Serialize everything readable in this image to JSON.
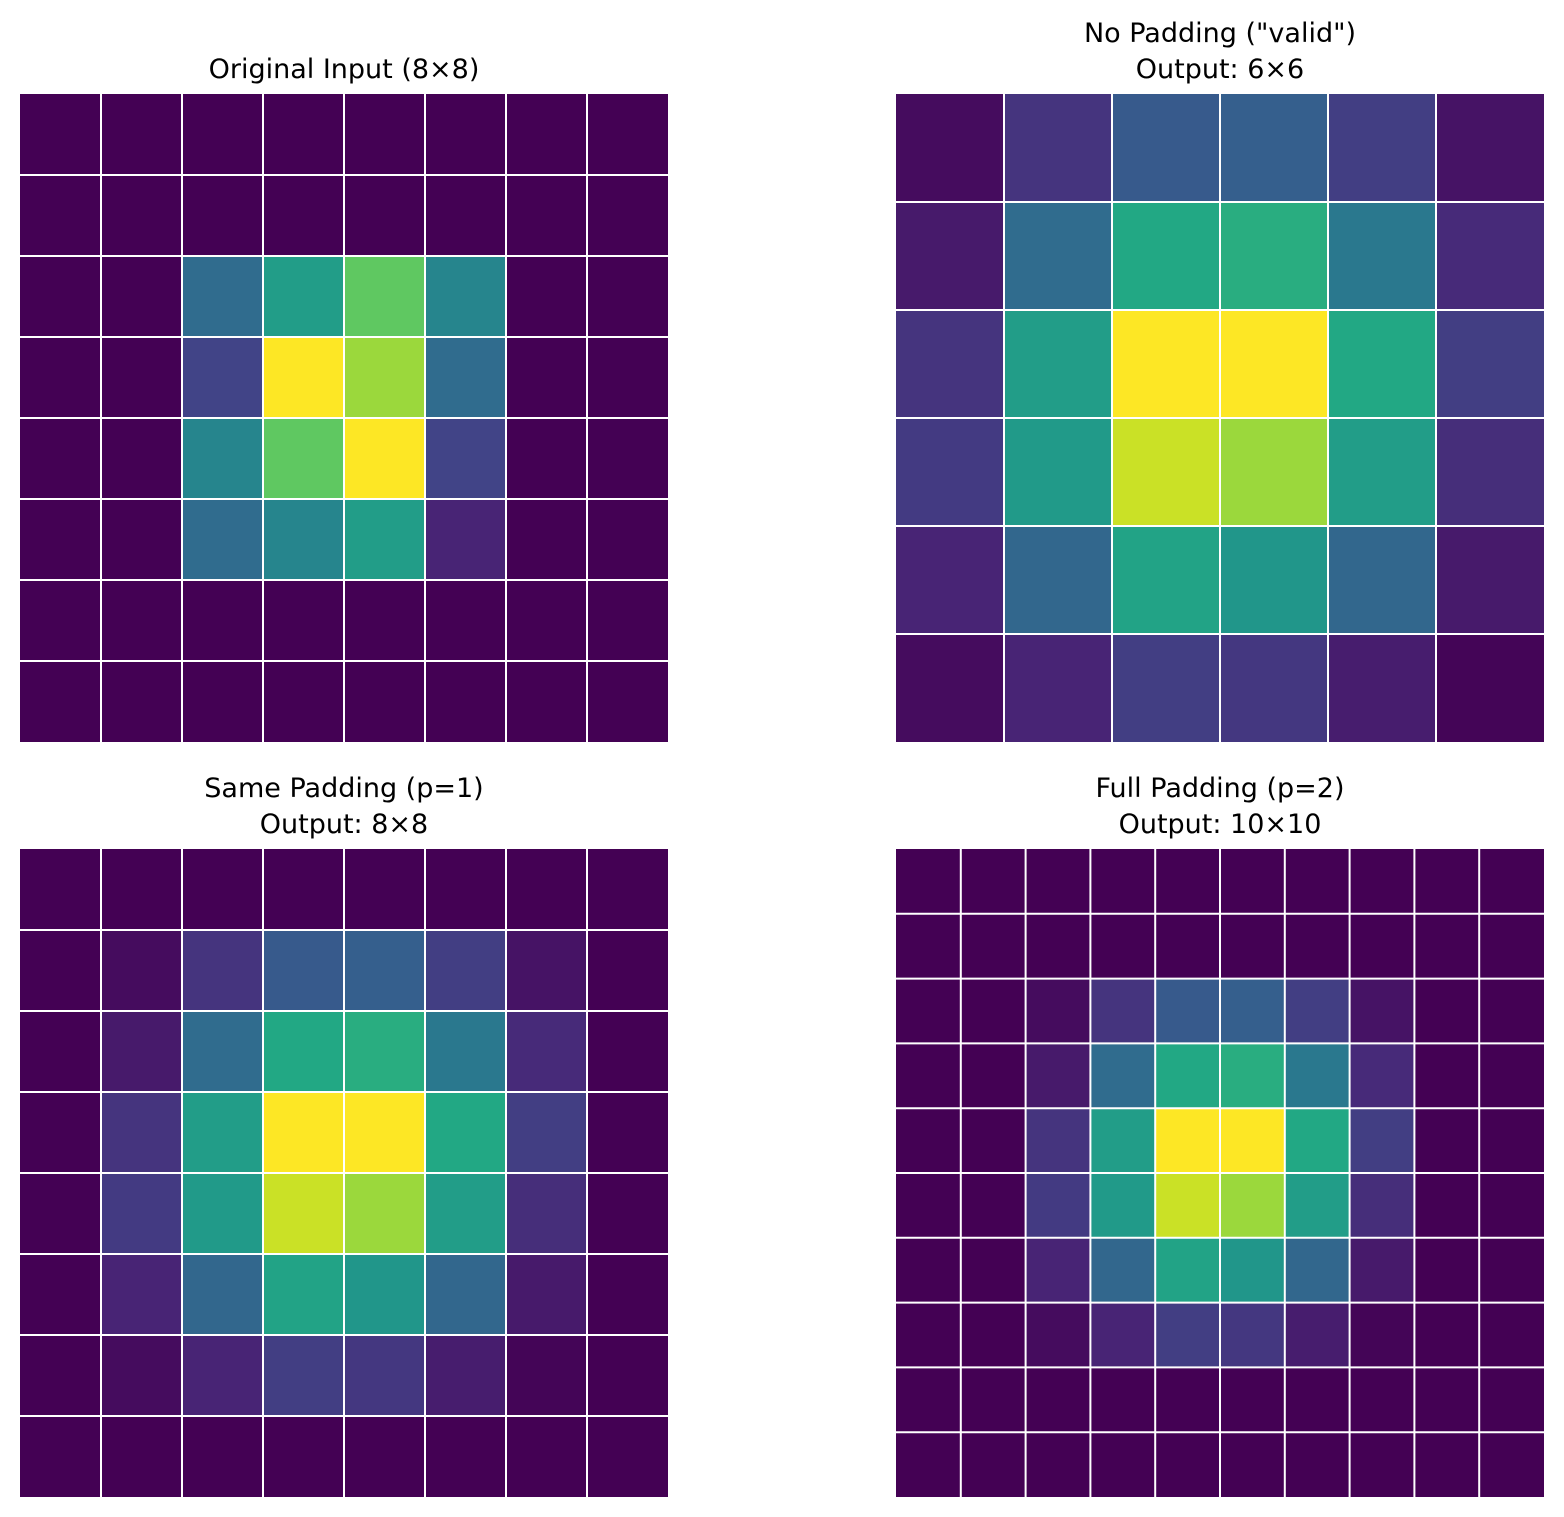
{
  "figure": {
    "description_colormap": "viridis",
    "colors": {
      "grid": "#ffffff",
      "low": "#440154",
      "high": "#fde725"
    }
  },
  "chart_data": [
    {
      "type": "heatmap",
      "title_lines": [
        "Original Input (8×8)"
      ],
      "rows": 8,
      "cols": 8,
      "vmin": 0,
      "vmax": 1,
      "values": [
        [
          0,
          0,
          0,
          0,
          0,
          0,
          0,
          0
        ],
        [
          0,
          0,
          0,
          0,
          0,
          0,
          0,
          0
        ],
        [
          0,
          0,
          0.35,
          0.55,
          0.75,
          0.45,
          0,
          0
        ],
        [
          0,
          0,
          0.2,
          1.0,
          0.85,
          0.35,
          0,
          0
        ],
        [
          0,
          0,
          0.45,
          0.75,
          1.0,
          0.2,
          0,
          0
        ],
        [
          0,
          0,
          0.35,
          0.45,
          0.55,
          0.1,
          0,
          0
        ],
        [
          0,
          0,
          0,
          0,
          0,
          0,
          0,
          0
        ],
        [
          0,
          0,
          0,
          0,
          0,
          0,
          0,
          0
        ]
      ]
    },
    {
      "type": "heatmap",
      "title_lines": [
        "No Padding (\"valid\")",
        "Output: 6×6"
      ],
      "rows": 6,
      "cols": 6,
      "vmin": 0,
      "vmax": 1,
      "values": [
        [
          0.03,
          0.15,
          0.28,
          0.3,
          0.18,
          0.05
        ],
        [
          0.07,
          0.35,
          0.6,
          0.62,
          0.4,
          0.12
        ],
        [
          0.15,
          0.55,
          1.0,
          1.0,
          0.6,
          0.18
        ],
        [
          0.17,
          0.54,
          0.92,
          0.85,
          0.55,
          0.13
        ],
        [
          0.1,
          0.33,
          0.58,
          0.52,
          0.33,
          0.07
        ],
        [
          0.03,
          0.1,
          0.18,
          0.16,
          0.08,
          0.01
        ]
      ]
    },
    {
      "type": "heatmap",
      "title_lines": [
        "Same Padding (p=1)",
        "Output: 8×8"
      ],
      "rows": 8,
      "cols": 8,
      "vmin": 0,
      "vmax": 1,
      "values": [
        [
          0,
          0,
          0,
          0,
          0,
          0,
          0,
          0
        ],
        [
          0,
          0.03,
          0.15,
          0.28,
          0.3,
          0.18,
          0.05,
          0
        ],
        [
          0,
          0.07,
          0.35,
          0.6,
          0.62,
          0.4,
          0.12,
          0
        ],
        [
          0,
          0.15,
          0.55,
          1.0,
          1.0,
          0.6,
          0.18,
          0
        ],
        [
          0,
          0.17,
          0.54,
          0.92,
          0.85,
          0.55,
          0.13,
          0
        ],
        [
          0,
          0.1,
          0.33,
          0.58,
          0.52,
          0.33,
          0.07,
          0
        ],
        [
          0,
          0.03,
          0.1,
          0.18,
          0.16,
          0.08,
          0.01,
          0
        ],
        [
          0,
          0,
          0,
          0,
          0,
          0,
          0,
          0
        ]
      ]
    },
    {
      "type": "heatmap",
      "title_lines": [
        "Full Padding (p=2)",
        "Output: 10×10"
      ],
      "rows": 10,
      "cols": 10,
      "vmin": 0,
      "vmax": 1,
      "values": [
        [
          0,
          0,
          0,
          0,
          0,
          0,
          0,
          0,
          0,
          0
        ],
        [
          0,
          0,
          0,
          0,
          0,
          0,
          0,
          0,
          0,
          0
        ],
        [
          0,
          0,
          0.03,
          0.15,
          0.28,
          0.3,
          0.18,
          0.05,
          0,
          0
        ],
        [
          0,
          0,
          0.07,
          0.35,
          0.6,
          0.62,
          0.4,
          0.12,
          0,
          0
        ],
        [
          0,
          0,
          0.15,
          0.55,
          1.0,
          1.0,
          0.6,
          0.18,
          0,
          0
        ],
        [
          0,
          0,
          0.17,
          0.54,
          0.92,
          0.85,
          0.55,
          0.13,
          0,
          0
        ],
        [
          0,
          0,
          0.1,
          0.33,
          0.58,
          0.52,
          0.33,
          0.07,
          0,
          0
        ],
        [
          0,
          0,
          0.03,
          0.1,
          0.18,
          0.16,
          0.08,
          0.01,
          0,
          0
        ],
        [
          0,
          0,
          0,
          0,
          0,
          0,
          0,
          0,
          0,
          0
        ],
        [
          0,
          0,
          0,
          0,
          0,
          0,
          0,
          0,
          0,
          0
        ]
      ]
    }
  ]
}
